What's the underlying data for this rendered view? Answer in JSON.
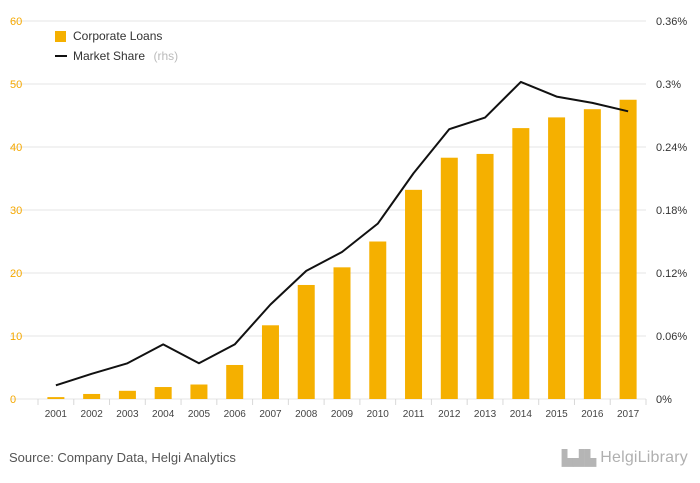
{
  "chart_data": {
    "type": "bar+line",
    "categories": [
      "2001",
      "2002",
      "2003",
      "2004",
      "2005",
      "2006",
      "2007",
      "2008",
      "2009",
      "2010",
      "2011",
      "2012",
      "2013",
      "2014",
      "2015",
      "2016",
      "2017"
    ],
    "series": [
      {
        "name": "Corporate Loans",
        "type": "bar",
        "axis": "left",
        "color": "#f5b000",
        "values": [
          0.3,
          0.8,
          1.3,
          1.9,
          2.3,
          5.4,
          11.7,
          18.1,
          20.9,
          25.0,
          33.2,
          38.3,
          38.9,
          43.0,
          44.7,
          46.0,
          47.5
        ]
      },
      {
        "name": "Market Share",
        "type": "line",
        "axis": "right",
        "color": "#111111",
        "values": [
          0.013,
          0.024,
          0.034,
          0.052,
          0.034,
          0.052,
          0.09,
          0.122,
          0.14,
          0.167,
          0.215,
          0.257,
          0.268,
          0.302,
          0.288,
          0.282,
          0.274
        ]
      }
    ],
    "y_left": {
      "min": 0,
      "max": 60,
      "ticks": [
        "0",
        "10",
        "20",
        "30",
        "40",
        "50",
        "60"
      ]
    },
    "y_right": {
      "min": 0,
      "max": 0.36,
      "ticks": [
        "0%",
        "0.06%",
        "0.12%",
        "0.18%",
        "0.24%",
        "0.3%",
        "0.36%"
      ]
    },
    "grid": true,
    "legend": {
      "position": "top-left",
      "items": [
        {
          "label": "Corporate Loans",
          "suffix": "",
          "marker": "square",
          "color": "#f5b000"
        },
        {
          "label": "Market Share",
          "suffix": "(rhs)",
          "marker": "line",
          "color": "#111111"
        }
      ]
    }
  },
  "footer": {
    "source": "Source: Company Data, Helgi Analytics",
    "logo_text": "HelgiLibrary",
    "logo_icon": "city-skyline-icon"
  }
}
